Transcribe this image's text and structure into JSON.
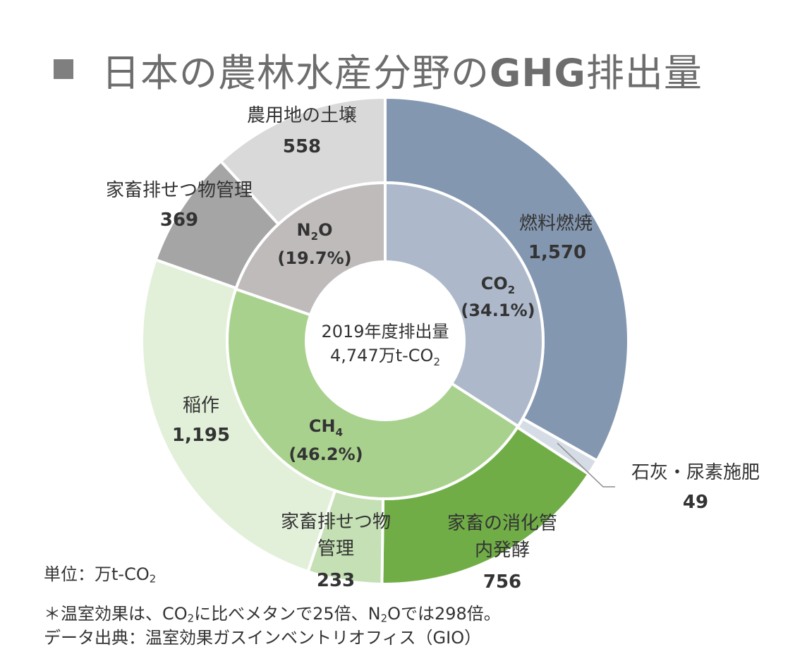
{
  "title": {
    "prefix": "日本の農林水産分野の",
    "bold": "GHG",
    "suffix": "排出量"
  },
  "chart_data": {
    "type": "pie",
    "subtype": "two-level donut (sunburst)",
    "unit_label": "単位：万t-CO2",
    "center": {
      "line1": "2019年度排出量",
      "line2": "4,747万t-CO2"
    },
    "inner": [
      {
        "name": "CO2",
        "pct_label": "(34.1%)",
        "percent": 34.1,
        "color": "#adb9ca"
      },
      {
        "name": "CH4",
        "pct_label": "(46.2%)",
        "percent": 46.2,
        "color": "#a9d18e"
      },
      {
        "name": "N2O",
        "pct_label": "(19.7%)",
        "percent": 19.7,
        "color": "#bfbbbb"
      }
    ],
    "outer": [
      {
        "name": "燃料燃焼",
        "value_label": "1,570",
        "value": 1570,
        "parent": "CO2",
        "color": "#8497b0"
      },
      {
        "name": "石灰・尿素施肥",
        "value_label": "49",
        "value": 49,
        "parent": "CO2",
        "color": "#d6dce5"
      },
      {
        "name": "家畜の消化管内発酵",
        "name_line1": "家畜の消化管",
        "name_line2": "内発酵",
        "value_label": "756",
        "value": 756,
        "parent": "CH4",
        "color": "#70ad47"
      },
      {
        "name": "家畜排せつ物管理",
        "name_line1": "家畜排せつ物",
        "name_line2": "管理",
        "value_label": "233",
        "value": 233,
        "parent": "CH4",
        "color": "#c5e0b4"
      },
      {
        "name": "稲作",
        "value_label": "1,195",
        "value": 1195,
        "parent": "CH4",
        "color": "#e2f0d9"
      },
      {
        "name": "家畜排せつ物管理",
        "value_label": "369",
        "value": 369,
        "parent": "N2O",
        "color": "#a5a5a5"
      },
      {
        "name": "農用地の土壌",
        "value_label": "558",
        "value": 558,
        "parent": "N2O",
        "color": "#d9d9d9"
      }
    ]
  },
  "notes": {
    "unit": "単位：万t-CO2",
    "gwp": "＊温室効果は、CO2に比べメタンで25倍、N2Oでは298倍。",
    "source": "データ出典：温室効果ガスインベントリオフィス（GIO）"
  }
}
